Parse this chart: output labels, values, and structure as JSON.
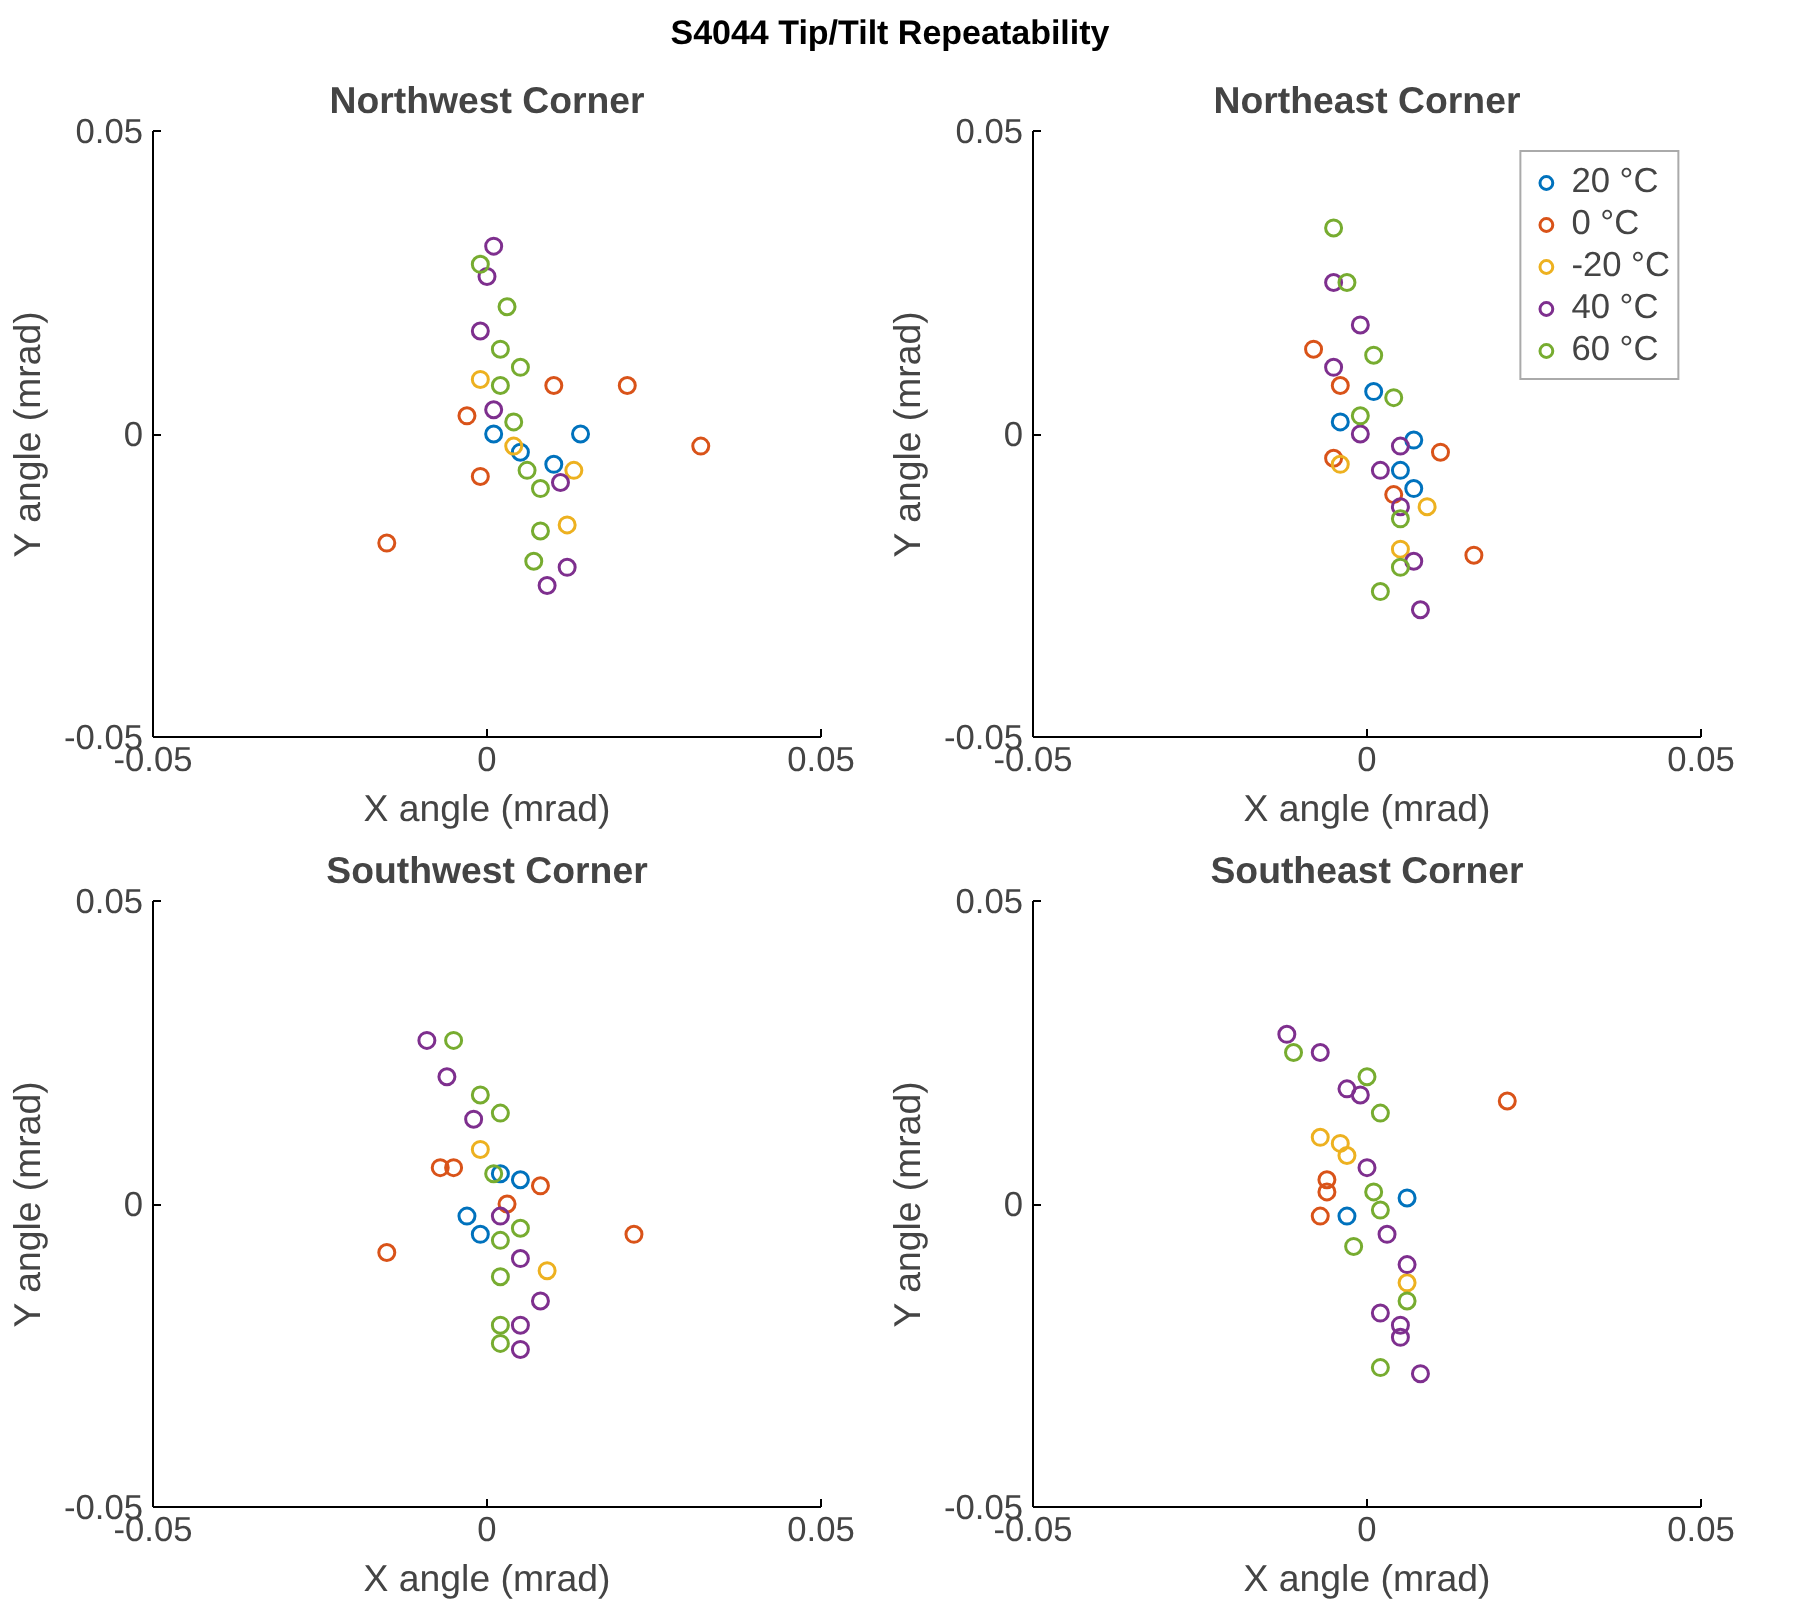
{
  "chart_data": [
    {
      "type": "scatter",
      "title": "Northwest Corner",
      "xlabel": "X angle (mrad)",
      "ylabel": "Y angle (mrad)",
      "annotations": [
        "S4044 Tip/Tilt Repeatability"
      ],
      "xlim": [
        -0.05,
        0.05
      ],
      "ylim": [
        -0.05,
        0.05
      ],
      "xticks": [
        -0.05,
        0,
        0.05
      ],
      "yticks": [
        -0.05,
        0,
        0.05
      ],
      "grid": false,
      "legend": false,
      "marker": "circle",
      "series": [
        {
          "color": "#0072bd",
          "x": [
            0.014,
            0.001,
            0.01,
            0.005
          ],
          "values": [
            0.0,
            0.0,
            -0.005,
            -0.003
          ]
        },
        {
          "color": "#d95319",
          "x": [
            0.01,
            0.021,
            0.032,
            -0.003,
            -0.015,
            -0.001
          ],
          "values": [
            0.008,
            0.008,
            -0.002,
            0.003,
            -0.018,
            -0.007
          ]
        },
        {
          "color": "#edb120",
          "x": [
            -0.001,
            0.013,
            0.012,
            0.004
          ],
          "values": [
            0.009,
            -0.006,
            -0.015,
            -0.002
          ]
        },
        {
          "color": "#7e2f8e",
          "x": [
            0.001,
            0.0,
            -0.001,
            0.011,
            0.012,
            0.009,
            0.001
          ],
          "values": [
            0.031,
            0.026,
            0.017,
            -0.008,
            -0.022,
            -0.025,
            0.004
          ]
        },
        {
          "color": "#77ac30",
          "x": [
            -0.001,
            0.003,
            0.002,
            0.005,
            0.006,
            0.008,
            0.008,
            0.007,
            0.004,
            0.002
          ],
          "values": [
            0.028,
            0.021,
            0.014,
            0.011,
            -0.006,
            -0.009,
            -0.016,
            -0.021,
            0.002,
            0.008
          ]
        }
      ]
    },
    {
      "type": "scatter",
      "title": "Northeast Corner",
      "xlabel": "X angle (mrad)",
      "ylabel": "Y angle (mrad)",
      "xlim": [
        -0.05,
        0.05
      ],
      "ylim": [
        -0.05,
        0.05
      ],
      "xticks": [
        -0.05,
        0,
        0.05
      ],
      "yticks": [
        -0.05,
        0,
        0.05
      ],
      "grid": false,
      "legend": "top right",
      "marker": "circle",
      "series": [
        {
          "name": "20 °C",
          "color": "#0072bd",
          "x": [
            0.001,
            -0.004,
            0.007,
            0.005,
            0.007
          ],
          "values": [
            0.007,
            0.002,
            -0.001,
            -0.006,
            -0.009
          ]
        },
        {
          "name": "0 °C",
          "color": "#d95319",
          "x": [
            -0.008,
            -0.004,
            -0.005,
            0.011,
            0.004,
            0.016
          ],
          "values": [
            0.014,
            0.008,
            -0.004,
            -0.003,
            -0.01,
            -0.02
          ]
        },
        {
          "name": "-20 °C",
          "color": "#edb120",
          "x": [
            -0.004,
            0.009,
            0.005
          ],
          "values": [
            -0.005,
            -0.012,
            -0.019
          ]
        },
        {
          "name": "40 °C",
          "color": "#7e2f8e",
          "x": [
            -0.001,
            -0.005,
            -0.001,
            0.005,
            0.002,
            0.005,
            0.007,
            0.008,
            -0.005
          ],
          "values": [
            0.018,
            0.011,
            0.0,
            -0.002,
            -0.006,
            -0.012,
            -0.021,
            -0.029,
            0.025
          ]
        },
        {
          "name": "60 °C",
          "color": "#77ac30",
          "x": [
            0.001,
            0.004,
            -0.001,
            0.005,
            0.005,
            0.002,
            -0.005,
            -0.003
          ],
          "values": [
            0.013,
            0.006,
            0.003,
            -0.014,
            -0.022,
            -0.026,
            0.034,
            0.025
          ]
        }
      ]
    },
    {
      "type": "scatter",
      "title": "Southwest Corner",
      "xlabel": "X angle (mrad)",
      "ylabel": "Y angle (mrad)",
      "xlim": [
        -0.05,
        0.05
      ],
      "ylim": [
        -0.05,
        0.05
      ],
      "xticks": [
        -0.05,
        0,
        0.05
      ],
      "yticks": [
        -0.05,
        0,
        0.05
      ],
      "grid": false,
      "legend": false,
      "marker": "circle",
      "series": [
        {
          "color": "#0072bd",
          "x": [
            0.002,
            0.005,
            -0.003,
            -0.001
          ],
          "values": [
            0.005,
            0.004,
            -0.002,
            -0.005
          ]
        },
        {
          "color": "#d95319",
          "x": [
            -0.007,
            -0.005,
            0.008,
            -0.015,
            0.022,
            0.003
          ],
          "values": [
            0.006,
            0.006,
            0.003,
            -0.008,
            -0.005,
            0.0
          ]
        },
        {
          "color": "#edb120",
          "x": [
            -0.001,
            0.009
          ],
          "values": [
            0.009,
            -0.011
          ]
        },
        {
          "color": "#7e2f8e",
          "x": [
            -0.009,
            -0.006,
            -0.002,
            0.002,
            0.005,
            0.008,
            0.005,
            0.005
          ],
          "values": [
            0.027,
            0.021,
            0.014,
            -0.002,
            -0.009,
            -0.016,
            -0.02,
            -0.024
          ]
        },
        {
          "color": "#77ac30",
          "x": [
            -0.005,
            -0.001,
            0.002,
            0.001,
            0.002,
            0.005,
            0.002,
            0.002,
            0.002
          ],
          "values": [
            0.027,
            0.018,
            0.015,
            0.005,
            -0.006,
            -0.004,
            -0.012,
            -0.02,
            -0.023
          ]
        }
      ]
    },
    {
      "type": "scatter",
      "title": "Southeast Corner",
      "xlabel": "X angle (mrad)",
      "ylabel": "Y angle (mrad)",
      "xlim": [
        -0.05,
        0.05
      ],
      "ylim": [
        -0.05,
        0.05
      ],
      "xticks": [
        -0.05,
        0,
        0.05
      ],
      "yticks": [
        -0.05,
        0,
        0.05
      ],
      "grid": false,
      "legend": false,
      "marker": "circle",
      "series": [
        {
          "color": "#0072bd",
          "x": [
            0.006,
            -0.003
          ],
          "values": [
            0.001,
            -0.002
          ]
        },
        {
          "color": "#d95319",
          "x": [
            0.021,
            -0.006,
            -0.006,
            -0.007
          ],
          "values": [
            0.017,
            0.004,
            0.002,
            -0.002
          ]
        },
        {
          "color": "#edb120",
          "x": [
            -0.007,
            -0.004,
            -0.003,
            0.006
          ],
          "values": [
            0.011,
            0.01,
            0.008,
            -0.013
          ]
        },
        {
          "color": "#7e2f8e",
          "x": [
            -0.012,
            -0.007,
            -0.003,
            -0.001,
            0.0,
            0.003,
            0.006,
            0.002,
            0.005,
            0.005,
            0.008
          ],
          "values": [
            0.028,
            0.025,
            0.019,
            0.018,
            0.006,
            -0.005,
            -0.01,
            -0.018,
            -0.02,
            -0.022,
            -0.028
          ]
        },
        {
          "color": "#77ac30",
          "x": [
            -0.011,
            0.0,
            0.002,
            0.001,
            0.002,
            -0.002,
            0.006,
            0.002
          ],
          "values": [
            0.025,
            0.021,
            0.015,
            0.002,
            -0.001,
            -0.007,
            -0.016,
            -0.027
          ]
        }
      ]
    }
  ]
}
